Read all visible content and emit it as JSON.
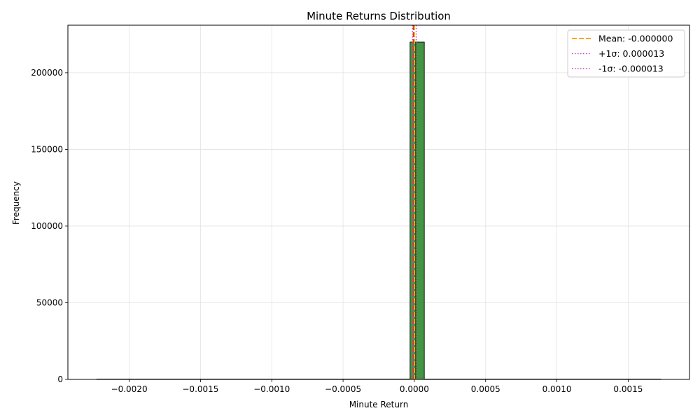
{
  "chart_data": {
    "type": "bar",
    "title": "Minute Returns Distribution",
    "xlabel": "Minute Return",
    "ylabel": "Frequency",
    "xlim": [
      -0.00243,
      0.00193
    ],
    "ylim": [
      0,
      231000
    ],
    "grid": true,
    "legend_position": "top-right",
    "x_ticks": [
      {
        "value": -0.002,
        "label": "−0.0020"
      },
      {
        "value": -0.0015,
        "label": "−0.0015"
      },
      {
        "value": -0.001,
        "label": "−0.0010"
      },
      {
        "value": -0.0005,
        "label": "−0.0005"
      },
      {
        "value": 0.0,
        "label": "0.0000"
      },
      {
        "value": 0.0005,
        "label": "0.0005"
      },
      {
        "value": 0.001,
        "label": "0.0010"
      },
      {
        "value": 0.0015,
        "label": "0.0015"
      }
    ],
    "y_ticks": [
      {
        "value": 0,
        "label": "0"
      },
      {
        "value": 50000,
        "label": "50000"
      },
      {
        "value": 100000,
        "label": "100000"
      },
      {
        "value": 150000,
        "label": "150000"
      },
      {
        "value": 200000,
        "label": "200000"
      }
    ],
    "bins": [
      {
        "x0": -3e-05,
        "x1": 1e-05,
        "count": 220000
      },
      {
        "x0": 1e-05,
        "x1": 7e-05,
        "count": 220000
      }
    ],
    "baseline_range": [
      -0.00223,
      0.00173
    ],
    "bar_color": "#2e8b2e",
    "bar_edge_color": "#1a1a1a",
    "reference_lines": [
      {
        "label": "Mean: -0.000000",
        "value": 0.0,
        "color": "#ffa500",
        "style": "dashed"
      },
      {
        "label": "+1σ: 0.000013",
        "value": 1.3e-05,
        "color": "#bf40bf",
        "style": "dotted"
      },
      {
        "label": "-1σ: -0.000013",
        "value": -1.3e-05,
        "color": "#bf40bf",
        "style": "dotted"
      }
    ],
    "extra_lines": [
      {
        "value": -7e-06,
        "color": "#e41a1c",
        "style": "dashed"
      }
    ]
  }
}
